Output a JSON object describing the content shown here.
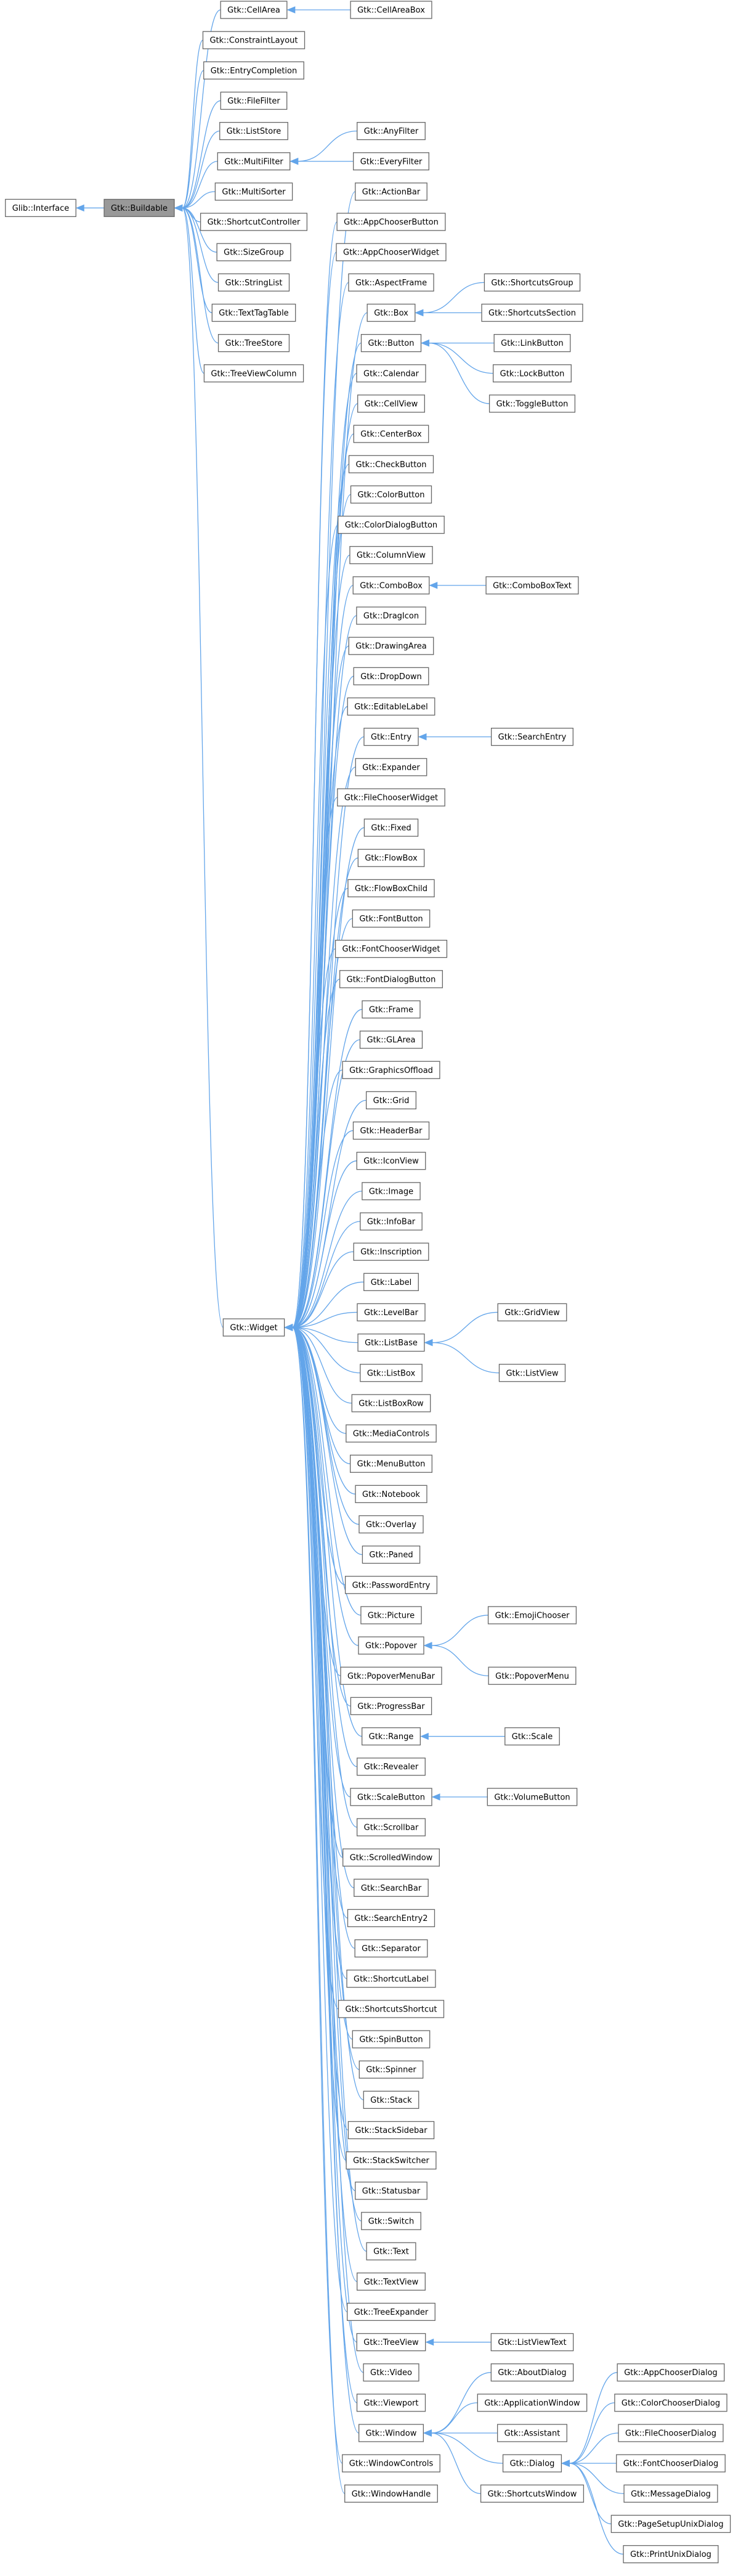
{
  "root": {
    "label": "Glib::Interface",
    "children": [
      {
        "label": "Gtk::Buildable",
        "highlighted": true,
        "children": [
          {
            "label": "Gtk::CellArea",
            "children": [
              {
                "label": "Gtk::CellAreaBox"
              }
            ]
          },
          {
            "label": "Gtk::ConstraintLayout"
          },
          {
            "label": "Gtk::EntryCompletion"
          },
          {
            "label": "Gtk::FileFilter"
          },
          {
            "label": "Gtk::ListStore"
          },
          {
            "label": "Gtk::MultiFilter",
            "children": [
              {
                "label": "Gtk::AnyFilter"
              },
              {
                "label": "Gtk::EveryFilter"
              }
            ]
          },
          {
            "label": "Gtk::MultiSorter"
          },
          {
            "label": "Gtk::ShortcutController"
          },
          {
            "label": "Gtk::SizeGroup"
          },
          {
            "label": "Gtk::StringList"
          },
          {
            "label": "Gtk::TextTagTable"
          },
          {
            "label": "Gtk::TreeStore"
          },
          {
            "label": "Gtk::TreeViewColumn"
          },
          {
            "label": "Gtk::Widget",
            "children": [
              {
                "label": "Gtk::ActionBar"
              },
              {
                "label": "Gtk::AppChooserButton"
              },
              {
                "label": "Gtk::AppChooserWidget"
              },
              {
                "label": "Gtk::AspectFrame"
              },
              {
                "label": "Gtk::Box",
                "children": [
                  {
                    "label": "Gtk::ShortcutsGroup"
                  },
                  {
                    "label": "Gtk::ShortcutsSection"
                  }
                ]
              },
              {
                "label": "Gtk::Button",
                "children": [
                  {
                    "label": "Gtk::LinkButton"
                  },
                  {
                    "label": "Gtk::LockButton"
                  },
                  {
                    "label": "Gtk::ToggleButton"
                  }
                ]
              },
              {
                "label": "Gtk::Calendar"
              },
              {
                "label": "Gtk::CellView"
              },
              {
                "label": "Gtk::CenterBox"
              },
              {
                "label": "Gtk::CheckButton"
              },
              {
                "label": "Gtk::ColorButton"
              },
              {
                "label": "Gtk::ColorDialogButton"
              },
              {
                "label": "Gtk::ColumnView"
              },
              {
                "label": "Gtk::ComboBox",
                "children": [
                  {
                    "label": "Gtk::ComboBoxText"
                  }
                ]
              },
              {
                "label": "Gtk::DragIcon"
              },
              {
                "label": "Gtk::DrawingArea"
              },
              {
                "label": "Gtk::DropDown"
              },
              {
                "label": "Gtk::EditableLabel"
              },
              {
                "label": "Gtk::Entry",
                "children": [
                  {
                    "label": "Gtk::SearchEntry"
                  }
                ]
              },
              {
                "label": "Gtk::Expander"
              },
              {
                "label": "Gtk::FileChooserWidget"
              },
              {
                "label": "Gtk::Fixed"
              },
              {
                "label": "Gtk::FlowBox"
              },
              {
                "label": "Gtk::FlowBoxChild"
              },
              {
                "label": "Gtk::FontButton"
              },
              {
                "label": "Gtk::FontChooserWidget"
              },
              {
                "label": "Gtk::FontDialogButton"
              },
              {
                "label": "Gtk::Frame"
              },
              {
                "label": "Gtk::GLArea"
              },
              {
                "label": "Gtk::GraphicsOffload"
              },
              {
                "label": "Gtk::Grid"
              },
              {
                "label": "Gtk::HeaderBar"
              },
              {
                "label": "Gtk::IconView"
              },
              {
                "label": "Gtk::Image"
              },
              {
                "label": "Gtk::InfoBar"
              },
              {
                "label": "Gtk::Inscription"
              },
              {
                "label": "Gtk::Label"
              },
              {
                "label": "Gtk::LevelBar"
              },
              {
                "label": "Gtk::ListBase",
                "children": [
                  {
                    "label": "Gtk::GridView"
                  },
                  {
                    "label": "Gtk::ListView"
                  }
                ]
              },
              {
                "label": "Gtk::ListBox"
              },
              {
                "label": "Gtk::ListBoxRow"
              },
              {
                "label": "Gtk::MediaControls"
              },
              {
                "label": "Gtk::MenuButton"
              },
              {
                "label": "Gtk::Notebook"
              },
              {
                "label": "Gtk::Overlay"
              },
              {
                "label": "Gtk::Paned"
              },
              {
                "label": "Gtk::PasswordEntry"
              },
              {
                "label": "Gtk::Picture"
              },
              {
                "label": "Gtk::Popover",
                "children": [
                  {
                    "label": "Gtk::EmojiChooser"
                  },
                  {
                    "label": "Gtk::PopoverMenu"
                  }
                ]
              },
              {
                "label": "Gtk::PopoverMenuBar"
              },
              {
                "label": "Gtk::ProgressBar"
              },
              {
                "label": "Gtk::Range",
                "children": [
                  {
                    "label": "Gtk::Scale"
                  }
                ]
              },
              {
                "label": "Gtk::Revealer"
              },
              {
                "label": "Gtk::ScaleButton",
                "children": [
                  {
                    "label": "Gtk::VolumeButton"
                  }
                ]
              },
              {
                "label": "Gtk::Scrollbar"
              },
              {
                "label": "Gtk::ScrolledWindow"
              },
              {
                "label": "Gtk::SearchBar"
              },
              {
                "label": "Gtk::SearchEntry2"
              },
              {
                "label": "Gtk::Separator"
              },
              {
                "label": "Gtk::ShortcutLabel"
              },
              {
                "label": "Gtk::ShortcutsShortcut"
              },
              {
                "label": "Gtk::SpinButton"
              },
              {
                "label": "Gtk::Spinner"
              },
              {
                "label": "Gtk::Stack"
              },
              {
                "label": "Gtk::StackSidebar"
              },
              {
                "label": "Gtk::StackSwitcher"
              },
              {
                "label": "Gtk::Statusbar"
              },
              {
                "label": "Gtk::Switch"
              },
              {
                "label": "Gtk::Text"
              },
              {
                "label": "Gtk::TextView"
              },
              {
                "label": "Gtk::TreeExpander"
              },
              {
                "label": "Gtk::TreeView",
                "children": [
                  {
                    "label": "Gtk::ListViewText"
                  }
                ]
              },
              {
                "label": "Gtk::Video"
              },
              {
                "label": "Gtk::Viewport"
              },
              {
                "label": "Gtk::Window",
                "children": [
                  {
                    "label": "Gtk::AboutDialog"
                  },
                  {
                    "label": "Gtk::ApplicationWindow"
                  },
                  {
                    "label": "Gtk::Assistant"
                  },
                  {
                    "label": "Gtk::Dialog",
                    "children": [
                      {
                        "label": "Gtk::AppChooserDialog"
                      },
                      {
                        "label": "Gtk::ColorChooserDialog"
                      },
                      {
                        "label": "Gtk::FileChooserDialog"
                      },
                      {
                        "label": "Gtk::FontChooserDialog"
                      },
                      {
                        "label": "Gtk::MessageDialog"
                      },
                      {
                        "label": "Gtk::PageSetupUnixDialog"
                      },
                      {
                        "label": "Gtk::PrintUnixDialog"
                      }
                    ]
                  },
                  {
                    "label": "Gtk::ShortcutsWindow"
                  }
                ]
              },
              {
                "label": "Gtk::WindowControls"
              },
              {
                "label": "Gtk::WindowHandle"
              }
            ]
          }
        ]
      }
    ]
  }
}
